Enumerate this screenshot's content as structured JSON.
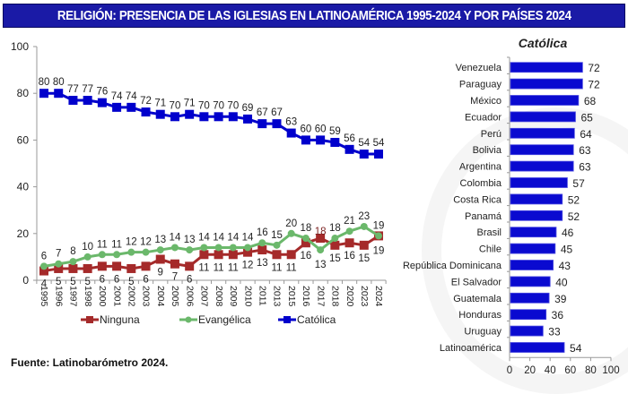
{
  "header": {
    "title": "RELIGIÓN: PRESENCIA DE LAS IGLESIAS EN LATINOAMÉRICA 1995-2024 Y POR PAÍSES 2024"
  },
  "footer": {
    "source": "Fuente: Latinobarómetro 2024."
  },
  "chart_data": [
    {
      "type": "line",
      "title": "",
      "xlabel": "",
      "ylabel": "",
      "ylim": [
        0,
        100
      ],
      "yticks": [
        0,
        20,
        40,
        60,
        80,
        100
      ],
      "grid": false,
      "legend": "bottom",
      "x": [
        "1995",
        "1996",
        "1997",
        "1998",
        "2000",
        "2001",
        "2002",
        "2003",
        "2004",
        "2005",
        "2006",
        "2007",
        "2008",
        "2009",
        "2010",
        "2011",
        "2013",
        "2015",
        "2016",
        "2017",
        "2018",
        "2020",
        "2023",
        "2024"
      ],
      "series": [
        {
          "name": "Ninguna",
          "color": "#a52a2a",
          "marker": "square",
          "values": [
            4,
            5,
            5,
            5,
            6,
            6,
            5,
            6,
            9,
            7,
            6,
            11,
            11,
            11,
            12,
            13,
            11,
            11,
            16,
            18,
            15,
            16,
            15,
            19
          ]
        },
        {
          "name": "Evangélica",
          "color": "#6bb86b",
          "marker": "circle",
          "values": [
            6,
            7,
            8,
            10,
            11,
            11,
            12,
            12,
            13,
            14,
            13,
            14,
            14,
            14,
            14,
            16,
            15,
            20,
            18,
            13,
            18,
            21,
            23,
            19
          ]
        },
        {
          "name": "Católica",
          "color": "#0000cc",
          "marker": "square",
          "values": [
            80,
            80,
            77,
            77,
            76,
            74,
            74,
            72,
            71,
            70,
            71,
            70,
            70,
            70,
            69,
            67,
            67,
            63,
            60,
            60,
            59,
            56,
            54,
            54
          ]
        }
      ]
    },
    {
      "type": "bar",
      "orientation": "horizontal",
      "title": "Católica",
      "xlim": [
        0,
        100
      ],
      "xticks": [
        0,
        20,
        40,
        60,
        80,
        100
      ],
      "color": "#0a0ad0",
      "categories": [
        "Venezuela",
        "Paraguay",
        "México",
        "Ecuador",
        "Perú",
        "Bolivia",
        "Argentina",
        "Colombia",
        "Costa Rica",
        "Panamá",
        "Brasil",
        "Chile",
        "República Dominicana",
        "El Salvador",
        "Guatemala",
        "Honduras",
        "Uruguay",
        "Latinoamérica"
      ],
      "values": [
        72,
        72,
        68,
        65,
        64,
        63,
        63,
        57,
        52,
        52,
        46,
        45,
        43,
        40,
        39,
        36,
        33,
        54
      ]
    }
  ]
}
